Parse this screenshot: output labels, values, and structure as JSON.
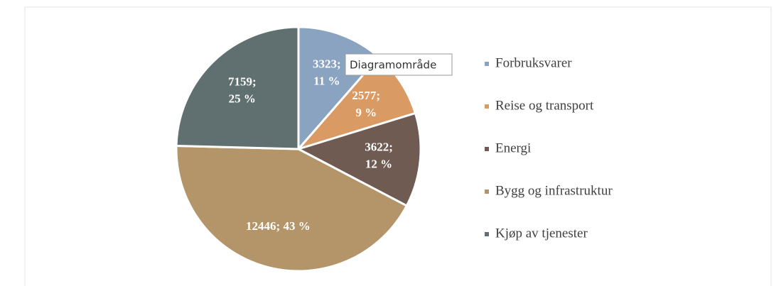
{
  "chart_data": {
    "type": "pie",
    "categories": [
      "Forbruksvarer",
      "Reise og transport",
      "Energi",
      "Bygg og infrastruktur",
      "Kjøp av tjenester"
    ],
    "values": [
      3323,
      2577,
      3622,
      12446,
      7159
    ],
    "value_labels": [
      "3323;\n11 %",
      "2577;\n9 %",
      "3622;\n12 %",
      "12446; 43 %",
      "7159;\n25 %"
    ],
    "colors": [
      "#8aa3c0",
      "#d99a63",
      "#6f5b52",
      "#b39569",
      "#606f70"
    ],
    "legend": "right"
  },
  "tooltip": "Diagramområde"
}
